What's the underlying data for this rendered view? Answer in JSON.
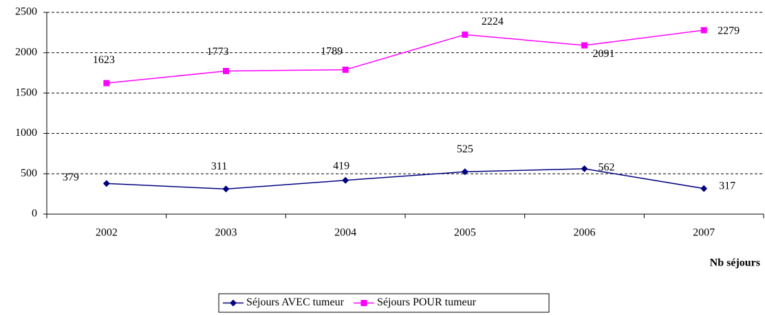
{
  "chart_data": {
    "type": "line",
    "categories": [
      "2002",
      "2003",
      "2004",
      "2005",
      "2006",
      "2007"
    ],
    "series": [
      {
        "name": "Séjours AVEC tumeur",
        "color": "#000080",
        "marker": "diamond",
        "values": [
          379,
          311,
          419,
          525,
          562,
          317
        ]
      },
      {
        "name": "Séjours POUR tumeur",
        "color": "#ff00ff",
        "marker": "square",
        "values": [
          1623,
          1773,
          1789,
          2224,
          2091,
          2279
        ]
      }
    ],
    "x_label": "Nb séjours",
    "ylim": [
      0,
      2500
    ],
    "yticks": [
      0,
      500,
      1000,
      1500,
      2000,
      2500
    ],
    "grid": true,
    "legend": "bottom"
  }
}
